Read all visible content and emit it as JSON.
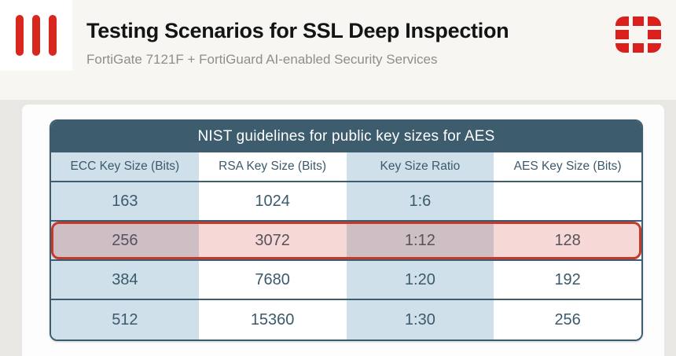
{
  "header": {
    "title": "Testing Scenarios for SSL Deep Inspection",
    "subtitle": "FortiGate 7121F + FortiGuard AI-enabled Security Services",
    "left_logo_icon": "three-red-bars-icon",
    "right_logo_icon": "fortinet-gate-icon"
  },
  "table": {
    "title": "NIST guidelines for public key sizes for AES",
    "columns": [
      "ECC Key Size (Bits)",
      "RSA Key Size (Bits)",
      "Key Size Ratio",
      "AES Key Size (Bits)"
    ],
    "rows": [
      {
        "cells": [
          "163",
          "1024",
          "1:6",
          ""
        ],
        "highlighted": false
      },
      {
        "cells": [
          "256",
          "3072",
          "1:12",
          "128"
        ],
        "highlighted": true
      },
      {
        "cells": [
          "384",
          "7680",
          "1:20",
          "192"
        ],
        "highlighted": false
      },
      {
        "cells": [
          "512",
          "15360",
          "1:30",
          "256"
        ],
        "highlighted": false
      }
    ],
    "highlighted_row_index": 1
  },
  "chart_data": {
    "type": "table",
    "title": "NIST guidelines for public key sizes for AES",
    "columns": [
      "ECC Key Size (Bits)",
      "RSA Key Size (Bits)",
      "Key Size Ratio",
      "AES Key Size (Bits)"
    ],
    "rows": [
      [
        "163",
        "1024",
        "1:6",
        ""
      ],
      [
        "256",
        "3072",
        "1:12",
        "128"
      ],
      [
        "384",
        "7680",
        "1:20",
        "192"
      ],
      [
        "512",
        "15360",
        "1:30",
        "256"
      ]
    ],
    "highlighted_row": 1
  },
  "colors": {
    "page_bg": "#e9e7e3",
    "top_band_bg": "#f7f6f3",
    "brand_red": "#d7271e",
    "table_header_bg": "#3d5c6e",
    "stripe_blue": "#cfe0ea",
    "cell_text": "#3b5a6b",
    "highlight_border": "#c43a2c",
    "subtitle_gray": "#8f8e8b"
  }
}
